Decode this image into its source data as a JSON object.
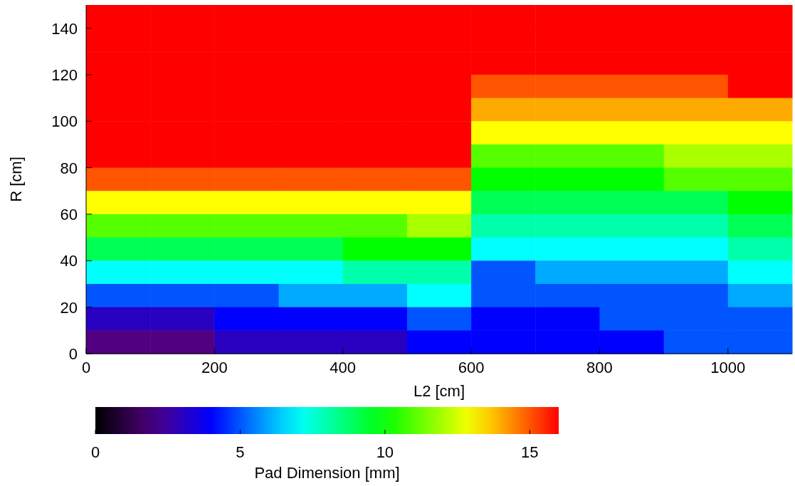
{
  "chart_data": {
    "type": "heatmap",
    "xlabel": "L2 [cm]",
    "ylabel": "R [cm]",
    "clabel": "Pad Dimension [mm]",
    "x": [
      50,
      150,
      250,
      350,
      450,
      550,
      650,
      750,
      850,
      950,
      1050
    ],
    "y": [
      145,
      135,
      125,
      115,
      105,
      95,
      85,
      75,
      65,
      55,
      45,
      35,
      25,
      15,
      5
    ],
    "xlim": [
      0,
      1100
    ],
    "ylim": [
      0,
      150
    ],
    "xticks": [
      0,
      200,
      400,
      600,
      800,
      1000
    ],
    "yticks": [
      0,
      20,
      40,
      60,
      80,
      100,
      120,
      140
    ],
    "clim": [
      0,
      16
    ],
    "cticks": [
      0,
      5,
      10,
      15
    ],
    "cells": [
      [
        16,
        16,
        16,
        16,
        16,
        16,
        16,
        16,
        16,
        16,
        16
      ],
      [
        16,
        16,
        16,
        16,
        16,
        16,
        16,
        16,
        16,
        16,
        16
      ],
      [
        16,
        16,
        16,
        16,
        16,
        16,
        16,
        16,
        16,
        16,
        16
      ],
      [
        16,
        16,
        16,
        16,
        16,
        16,
        15,
        15,
        15,
        15,
        16
      ],
      [
        16,
        16,
        16,
        16,
        16,
        16,
        14,
        14,
        14,
        14,
        14
      ],
      [
        16,
        16,
        16,
        16,
        16,
        16,
        13,
        13,
        13,
        13,
        13
      ],
      [
        16,
        16,
        16,
        16,
        16,
        16,
        11,
        11,
        11,
        12,
        12
      ],
      [
        15,
        15,
        15,
        15,
        15,
        15,
        10,
        10,
        10,
        11,
        11
      ],
      [
        13,
        13,
        13,
        13,
        13,
        13,
        9,
        9,
        9,
        9,
        10
      ],
      [
        11,
        11,
        11,
        11,
        11,
        12,
        8,
        8,
        8,
        8,
        9
      ],
      [
        9,
        9,
        9,
        9,
        10,
        10,
        7,
        7,
        7,
        7,
        8
      ],
      [
        7,
        7,
        7,
        7,
        8,
        8,
        5,
        6,
        6,
        6,
        7
      ],
      [
        5,
        5,
        5,
        6,
        6,
        7,
        5,
        5,
        5,
        5,
        6
      ],
      [
        3,
        3,
        4,
        4,
        4,
        5,
        4,
        4,
        5,
        5,
        5
      ],
      [
        2,
        2,
        3,
        3,
        3,
        4,
        4,
        4,
        4,
        5,
        5
      ]
    ]
  }
}
